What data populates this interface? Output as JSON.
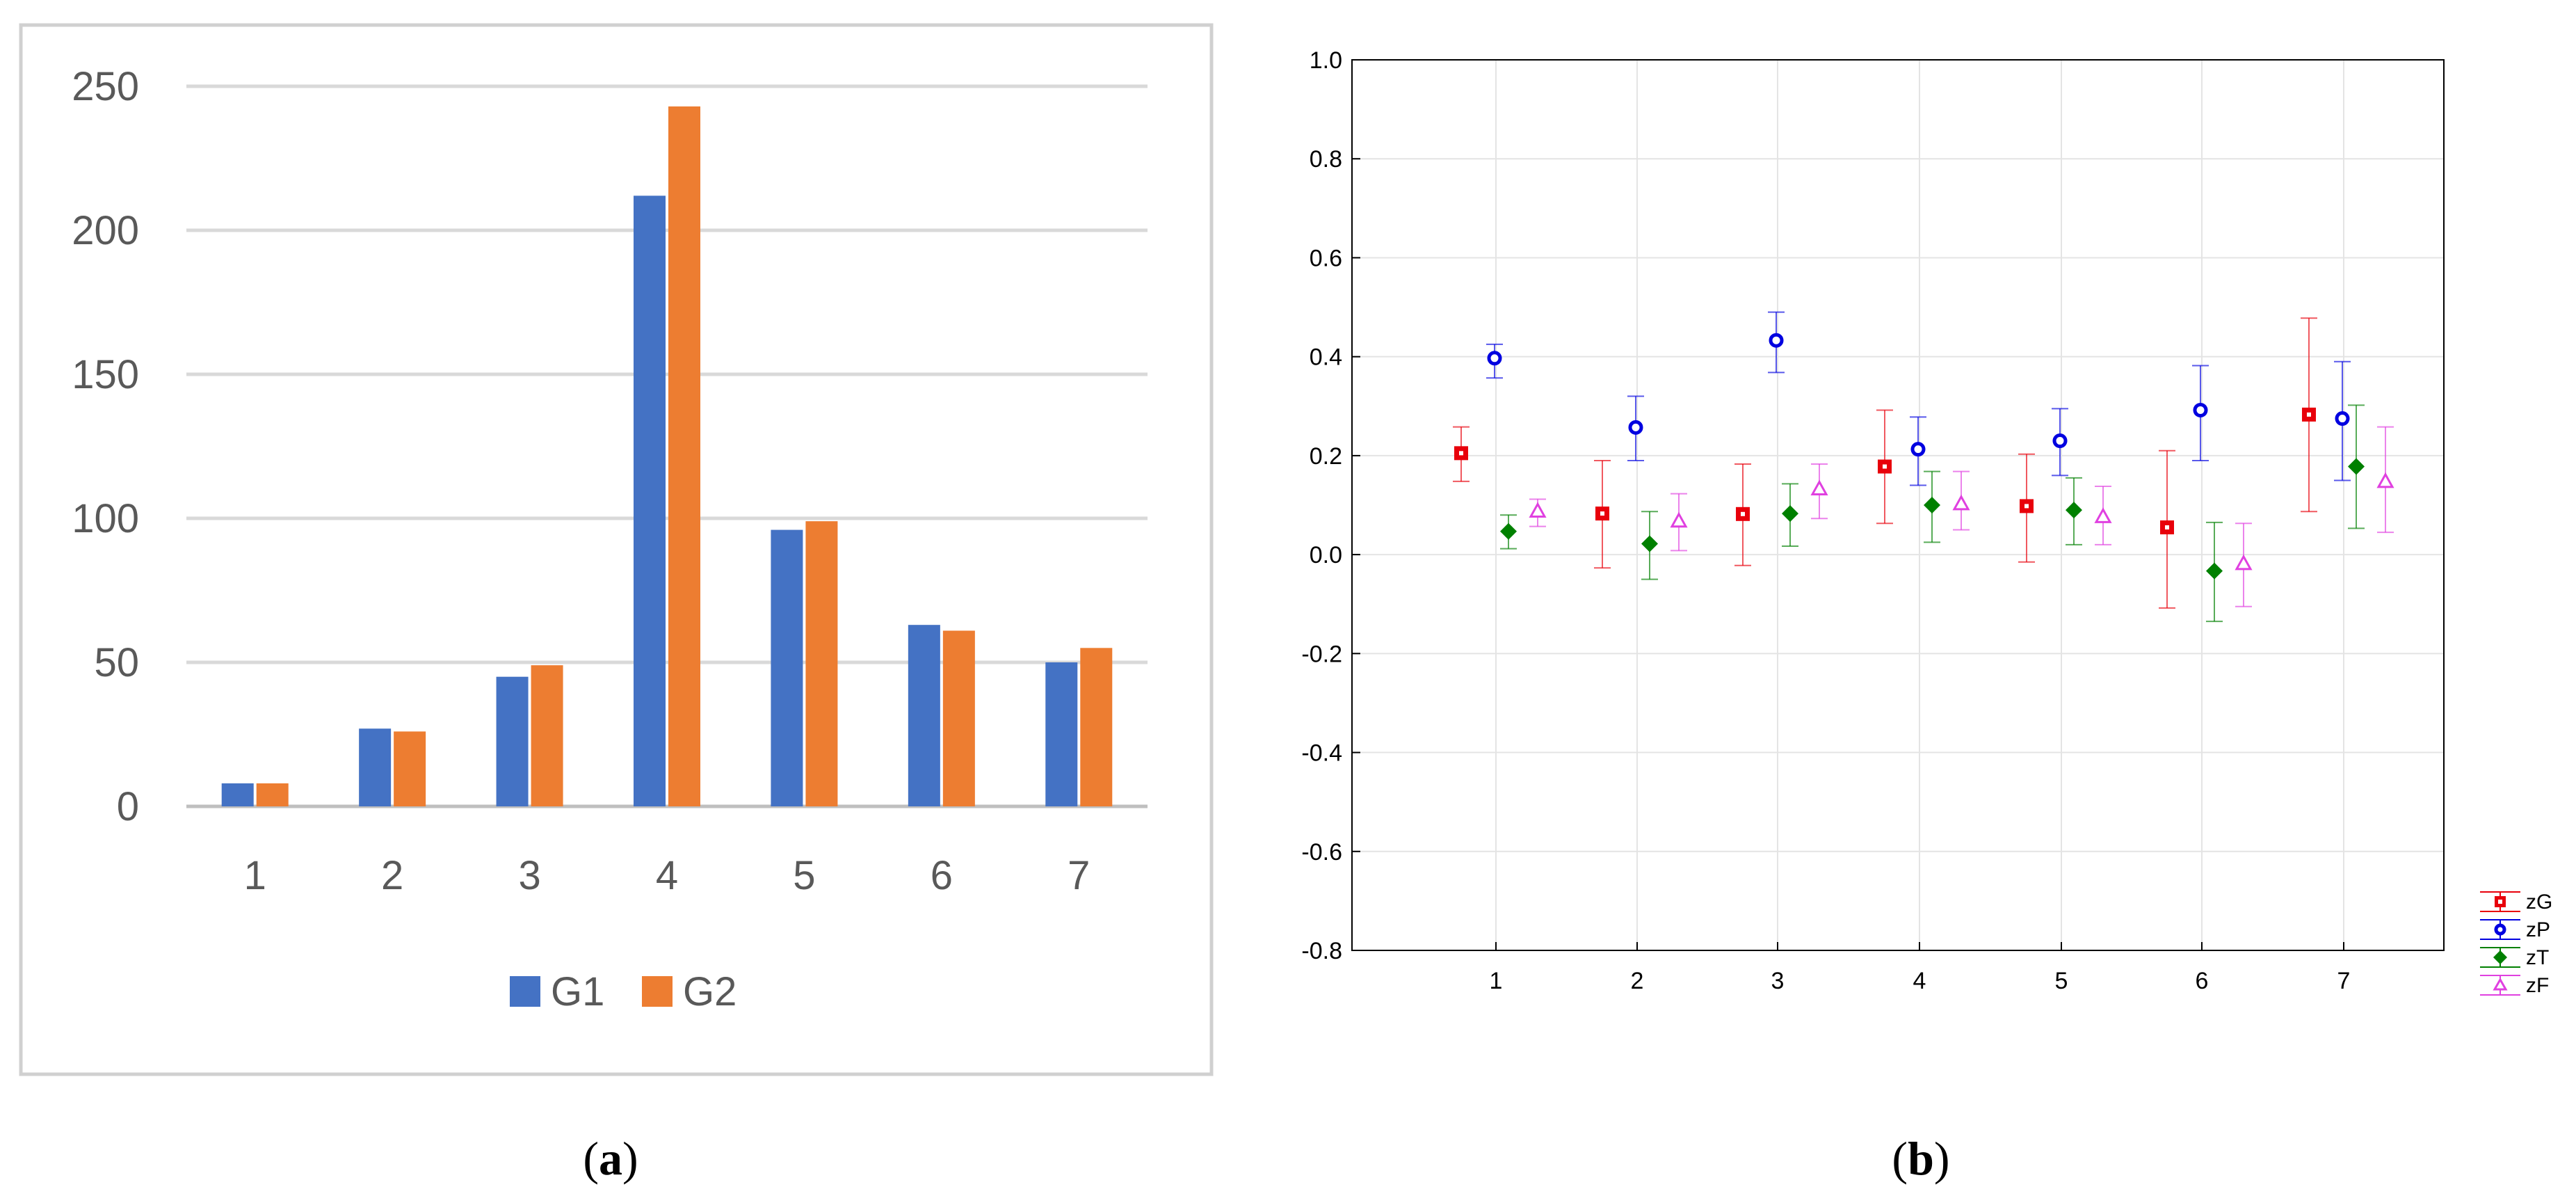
{
  "captions": {
    "a": "a",
    "b": "b"
  },
  "chart_data": [
    {
      "panel": "a",
      "type": "bar",
      "categories": [
        "1",
        "2",
        "3",
        "4",
        "5",
        "6",
        "7"
      ],
      "series": [
        {
          "name": "G1",
          "color": "#4472c4",
          "values": [
            8,
            27,
            45,
            212,
            96,
            63,
            50
          ]
        },
        {
          "name": "G2",
          "color": "#ed7d31",
          "values": [
            8,
            26,
            49,
            243,
            99,
            61,
            55
          ]
        }
      ],
      "ylim": [
        0,
        250
      ],
      "yticks": [
        "0",
        "50",
        "100",
        "150",
        "200",
        "250"
      ],
      "grid": true,
      "legend_position": "bottom"
    },
    {
      "panel": "b",
      "type": "scatter",
      "categories": [
        "1",
        "2",
        "3",
        "4",
        "5",
        "6",
        "7"
      ],
      "series": [
        {
          "name": "zG",
          "color": "#e8000b",
          "marker": "square",
          "values": [
            0.205,
            0.083,
            0.082,
            0.178,
            0.098,
            0.055,
            0.283
          ],
          "lower": [
            0.148,
            -0.027,
            -0.022,
            0.063,
            -0.015,
            -0.108,
            0.087
          ],
          "upper": [
            0.258,
            0.19,
            0.183,
            0.292,
            0.203,
            0.21,
            0.478
          ]
        },
        {
          "name": "zP",
          "color": "#0000e0",
          "marker": "circle",
          "values": [
            0.397,
            0.257,
            0.433,
            0.213,
            0.23,
            0.292,
            0.275
          ],
          "lower": [
            0.357,
            0.19,
            0.368,
            0.14,
            0.16,
            0.19,
            0.15
          ],
          "upper": [
            0.425,
            0.32,
            0.49,
            0.278,
            0.295,
            0.382,
            0.39
          ]
        },
        {
          "name": "zT",
          "color": "#008000",
          "marker": "diamond",
          "values": [
            0.047,
            0.022,
            0.083,
            0.1,
            0.09,
            -0.033,
            0.178
          ],
          "lower": [
            0.012,
            -0.05,
            0.017,
            0.025,
            0.02,
            -0.135,
            0.053
          ],
          "upper": [
            0.08,
            0.087,
            0.143,
            0.168,
            0.155,
            0.065,
            0.302
          ]
        },
        {
          "name": "zF",
          "color": "#e040e0",
          "marker": "triangle",
          "values": [
            0.088,
            0.068,
            0.133,
            0.103,
            0.077,
            -0.018,
            0.148
          ],
          "lower": [
            0.057,
            0.008,
            0.073,
            0.05,
            0.02,
            -0.105,
            0.045
          ],
          "upper": [
            0.112,
            0.123,
            0.183,
            0.168,
            0.138,
            0.063,
            0.258
          ]
        }
      ],
      "ylim": [
        -0.8,
        1.0
      ],
      "yticks": [
        "-0.8",
        "-0.6",
        "-0.4",
        "-0.2",
        "0.0",
        "0.2",
        "0.4",
        "0.6",
        "0.8",
        "1.0"
      ],
      "grid": true,
      "error_bars": true,
      "legend_position": "bottom-right"
    }
  ]
}
